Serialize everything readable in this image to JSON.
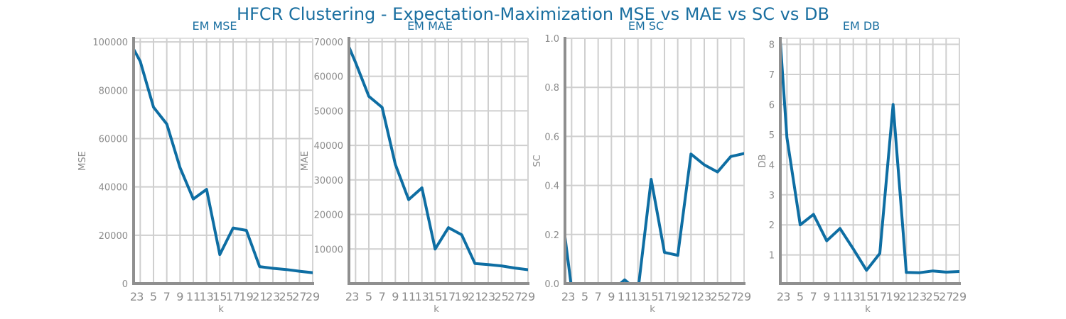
{
  "figure": {
    "title": "HFCR Clustering - Expectation-Maximization MSE vs MAE vs SC vs DB",
    "line_color": "#0e6ea3",
    "title_color": "#1a6fa0",
    "axis_color": "#8f8f8f",
    "grid_color": "#cfcfcf"
  },
  "chart_data": [
    {
      "type": "line",
      "title": "EM MSE",
      "xlabel": "k",
      "ylabel": "MSE",
      "x": [
        2,
        3,
        5,
        7,
        9,
        11,
        13,
        15,
        17,
        19,
        21,
        23,
        25,
        27,
        29
      ],
      "xticks": [
        2,
        3,
        5,
        7,
        9,
        11,
        13,
        15,
        17,
        19,
        21,
        23,
        25,
        27,
        29
      ],
      "xtick_labels": [
        "2",
        "3",
        "5",
        "7",
        "9",
        "11",
        "13",
        "15",
        "17",
        "19",
        "21",
        "23",
        "25",
        "27",
        "29"
      ],
      "xlim": [
        2,
        29
      ],
      "ylim": [
        0,
        101500
      ],
      "yticks": [
        0,
        20000,
        40000,
        60000,
        80000,
        100000
      ],
      "ytick_labels": [
        "0",
        "20000",
        "40000",
        "60000",
        "80000",
        "100000"
      ],
      "grid": true,
      "series": [
        {
          "values": [
            97000,
            92000,
            73000,
            66000,
            48000,
            35000,
            39000,
            12000,
            23000,
            22000,
            7000,
            6300,
            5800,
            5100,
            4500
          ]
        }
      ]
    },
    {
      "type": "line",
      "title": "EM MAE",
      "xlabel": "k",
      "ylabel": "MAE",
      "x": [
        2,
        3,
        5,
        7,
        9,
        11,
        13,
        15,
        17,
        19,
        21,
        23,
        25,
        27,
        29
      ],
      "xticks": [
        2,
        3,
        5,
        7,
        9,
        11,
        13,
        15,
        17,
        19,
        21,
        23,
        25,
        27,
        29
      ],
      "xtick_labels": [
        "2",
        "3",
        "5",
        "7",
        "9",
        "11",
        "13",
        "15",
        "17",
        "19",
        "21",
        "23",
        "25",
        "27",
        "29"
      ],
      "xlim": [
        2,
        29
      ],
      "ylim": [
        0,
        71000
      ],
      "yticks": [
        10000,
        20000,
        30000,
        40000,
        50000,
        60000,
        70000
      ],
      "ytick_labels": [
        "10000",
        "20000",
        "30000",
        "40000",
        "50000",
        "60000",
        "70000"
      ],
      "grid": true,
      "series": [
        {
          "values": [
            68500,
            64000,
            54200,
            51000,
            34500,
            24300,
            27700,
            10000,
            16200,
            14100,
            5800,
            5500,
            5100,
            4500,
            4000
          ]
        }
      ]
    },
    {
      "type": "line",
      "title": "EM SC",
      "xlabel": "k",
      "ylabel": "SC",
      "x": [
        2,
        3,
        5,
        7,
        9,
        11,
        13,
        15,
        17,
        19,
        21,
        23,
        25,
        27,
        29
      ],
      "xticks": [
        2,
        3,
        5,
        7,
        9,
        11,
        13,
        15,
        17,
        19,
        21,
        23,
        25,
        27,
        29
      ],
      "xtick_labels": [
        "2",
        "3",
        "5",
        "7",
        "9",
        "11",
        "13",
        "15",
        "17",
        "19",
        "21",
        "23",
        "25",
        "27",
        "29"
      ],
      "xlim": [
        2,
        29
      ],
      "ylim": [
        0,
        1.0
      ],
      "yticks": [
        0.0,
        0.2,
        0.4,
        0.6,
        0.8,
        1.0
      ],
      "ytick_labels": [
        "0.0",
        "0.2",
        "0.4",
        "0.6",
        "0.8",
        "1.0"
      ],
      "grid": true,
      "series": [
        {
          "values": [
            0.19,
            -0.02,
            -0.03,
            -0.03,
            -0.03,
            0.015,
            -0.03,
            0.425,
            0.127,
            0.115,
            0.528,
            0.484,
            0.455,
            0.518,
            0.53
          ]
        }
      ]
    },
    {
      "type": "line",
      "title": "EM DB",
      "xlabel": "k",
      "ylabel": "DB",
      "x": [
        2,
        3,
        5,
        7,
        9,
        11,
        13,
        15,
        17,
        19,
        21,
        23,
        25,
        27,
        29
      ],
      "xticks": [
        2,
        3,
        5,
        7,
        9,
        11,
        13,
        15,
        17,
        19,
        21,
        23,
        25,
        27,
        29
      ],
      "xtick_labels": [
        "2",
        "3",
        "5",
        "7",
        "9",
        "11",
        "13",
        "15",
        "17",
        "19",
        "21",
        "23",
        "25",
        "27",
        "29"
      ],
      "xlim": [
        2,
        29
      ],
      "ylim": [
        0.05,
        8.2
      ],
      "yticks": [
        1,
        2,
        3,
        4,
        5,
        6,
        7,
        8
      ],
      "ytick_labels": [
        "1",
        "2",
        "3",
        "4",
        "5",
        "6",
        "7",
        "8"
      ],
      "grid": true,
      "series": [
        {
          "values": [
            8.1,
            4.9,
            2.0,
            2.35,
            1.47,
            1.88,
            1.2,
            0.49,
            1.05,
            6.0,
            0.42,
            0.41,
            0.47,
            0.43,
            0.45
          ]
        }
      ]
    }
  ]
}
